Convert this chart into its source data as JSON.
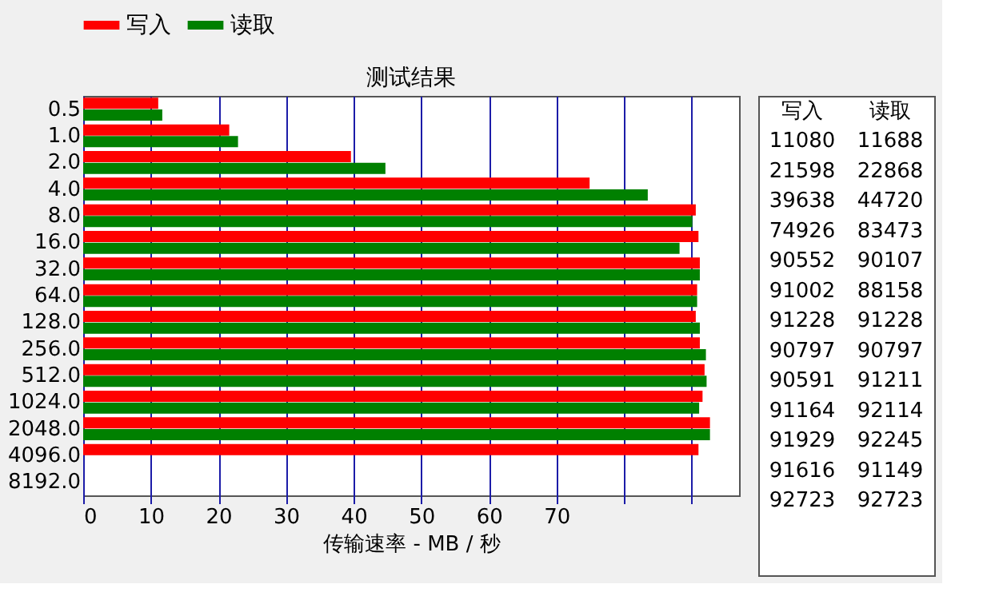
{
  "chart_data": [
    {
      "type": "bar",
      "orientation": "horizontal",
      "title": "测试结果",
      "xlabel": "传输速率 - MB / 秒",
      "categories": [
        "0.5",
        "1.0",
        "2.0",
        "4.0",
        "8.0",
        "16.0",
        "32.0",
        "64.0",
        "128.0",
        "256.0",
        "512.0",
        "1024.0",
        "2048.0",
        "4096.0",
        "8192.0"
      ],
      "series": [
        {
          "name": "写入",
          "color": "#ff0000",
          "values": [
            11.1,
            21.6,
            39.6,
            74.9,
            90.6,
            91.0,
            91.2,
            90.8,
            90.6,
            91.2,
            91.9,
            91.6,
            92.7,
            91.0,
            null
          ]
        },
        {
          "name": "读取",
          "color": "#008000",
          "values": [
            11.7,
            22.9,
            44.7,
            83.5,
            90.1,
            88.2,
            91.2,
            90.8,
            91.2,
            92.1,
            92.2,
            91.1,
            92.7,
            null,
            null
          ]
        }
      ],
      "xlim": [
        0,
        97
      ],
      "xticks": [
        0,
        10,
        20,
        30,
        40,
        50,
        60,
        70,
        {
          "value": 80,
          "label": null
        },
        {
          "value": 90,
          "label": null
        }
      ],
      "grid": "x",
      "legend": "top"
    },
    {
      "type": "other",
      "annotations": [
        "写入",
        "读取",
        "11080",
        "11688",
        "21598",
        "22868",
        "39638",
        "44720",
        "74926",
        "83473",
        "90552",
        "90107",
        "91002",
        "88158",
        "91228",
        "91228",
        "90797",
        "90797",
        "90591",
        "91211",
        "91164",
        "92114",
        "91929",
        "92245",
        "91616",
        "91149",
        "92723",
        "92723"
      ]
    }
  ]
}
